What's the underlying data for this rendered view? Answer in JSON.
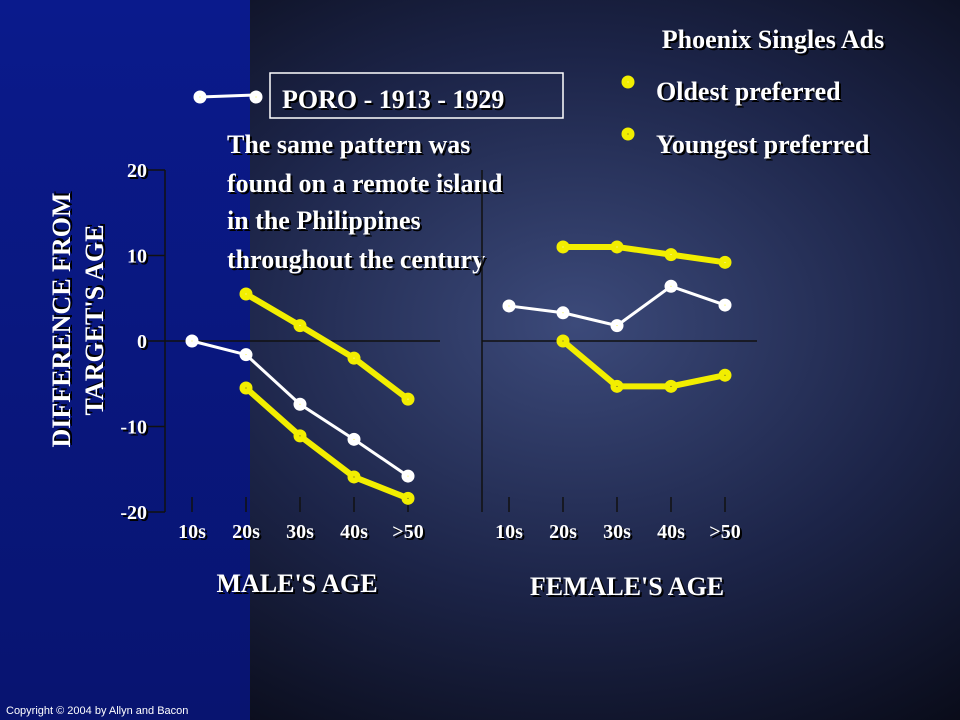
{
  "slide": {
    "legend_title": "Phoenix Singles Ads",
    "annotation": [
      "The same pattern was",
      "found on a remote island",
      "in the Philippines",
      "throughout the century"
    ],
    "copyright": "Copyright © 2004 by Allyn and Bacon"
  },
  "chart_data": [
    {
      "type": "line",
      "ylabel": [
        "DIFFERENCE FROM",
        "TARGET'S AGE"
      ],
      "xlabel": "MALE'S AGE",
      "categories": [
        "10s",
        "20s",
        "30s",
        "40s",
        ">50"
      ],
      "ylim": [
        -20,
        20
      ],
      "yticks": [
        -20,
        -10,
        0,
        10,
        20
      ],
      "series": [
        {
          "name": "Oldest preferred",
          "color": "#f2ee00",
          "marker_fill": "#ffffff",
          "values": [
            null,
            5.5,
            1.8,
            -2,
            -6.8
          ]
        },
        {
          "name": "Youngest preferred",
          "color": "#f2ee00",
          "marker_fill": "#1c1c3a",
          "values": [
            null,
            -5.5,
            -11.1,
            -15.9,
            -18.4
          ]
        },
        {
          "name": "PORO - 1913 - 1929",
          "color": "#ffffff",
          "marker_fill": "#f2ee00",
          "values": [
            0,
            -1.6,
            -7.4,
            -11.5,
            -15.8
          ]
        }
      ]
    },
    {
      "type": "line",
      "xlabel": "FEMALE'S AGE",
      "categories": [
        "10s",
        "20s",
        "30s",
        "40s",
        ">50"
      ],
      "ylim": [
        -20,
        20
      ],
      "series": [
        {
          "color": "#f2ee00",
          "marker_fill": "#ffffff",
          "values": [
            null,
            11,
            11,
            10.1,
            9.2
          ]
        },
        {
          "color": "#f2ee00",
          "marker_fill": "#1c1c3a",
          "values": [
            null,
            0,
            -5.3,
            -5.3,
            -4
          ]
        },
        {
          "color": "#ffffff",
          "marker_fill": "#f2ee00",
          "values": [
            4.1,
            3.3,
            1.8,
            6.4,
            4.2
          ]
        }
      ]
    }
  ]
}
